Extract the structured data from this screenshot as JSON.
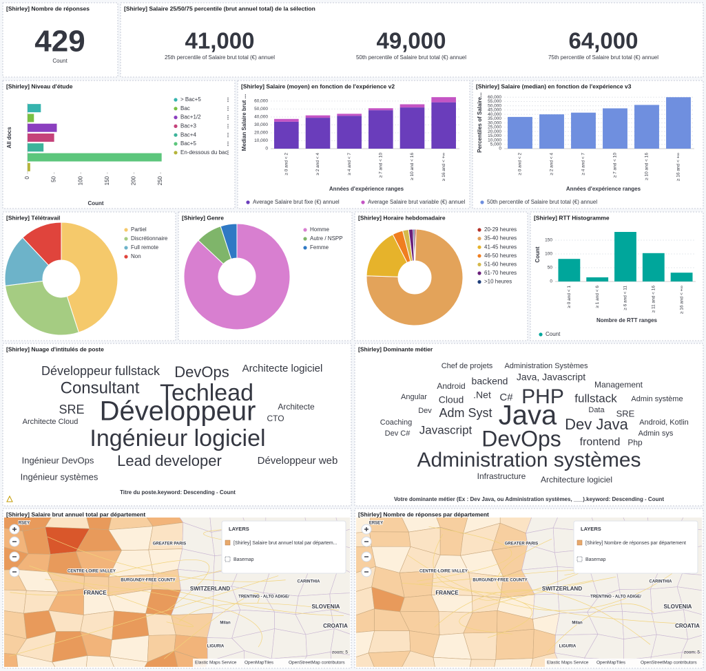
{
  "count_metric": {
    "title": "[Shirley] Nombre de réponses",
    "value": 429,
    "label": "Count"
  },
  "salary_metric": {
    "title": "[Shirley] Salaire 25/50/75 percentile (brut annuel total) de la sélection",
    "values": [
      41000,
      49000,
      64000
    ],
    "value_labels": [
      "41,000",
      "49,000",
      "64,000"
    ],
    "labels": [
      "25th percentile of Salaire brut total (€) annuel",
      "50th percentile of Salaire brut total (€) annuel",
      "75th percentile of Salaire brut total (€) annuel"
    ]
  },
  "chart_data": [
    {
      "type": "bar",
      "orientation": "horizontal",
      "title": "[Shirley] Niveau d'étude",
      "categories": [
        "> Bac+5",
        "Bac",
        "Bac+1/2",
        "Bac+3",
        "Bac+4",
        "Bac+5",
        "En-dessous du bac"
      ],
      "values": [
        25,
        12,
        55,
        50,
        30,
        252,
        5
      ],
      "colors": [
        "#36b4ae",
        "#79c043",
        "#8b3fbf",
        "#c5427a",
        "#3cb39a",
        "#5cc67c",
        "#b5b43a"
      ],
      "xlim": [
        0,
        255
      ],
      "xticks": [
        0,
        50,
        100,
        150,
        200,
        250
      ],
      "grid": false,
      "x_label": "Count",
      "y_label": "All docs"
    },
    {
      "type": "bar",
      "orientation": "vertical",
      "stacked": true,
      "title": "[Shirley] Salaire (moyen) en fonction de l'expérience v2",
      "categories": [
        "≥ 0 and < 2",
        "≥ 2 and < 4",
        "≥ 4 and < 7",
        "≥ 7 and < 10",
        "≥ 10 and < 16",
        "≥ 16 and < +∞"
      ],
      "series": [
        {
          "name": "Average Salaire brut fixe (€) annuel",
          "color": "#6a3dbb",
          "values": [
            34000,
            39000,
            41500,
            48500,
            52000,
            58500
          ]
        },
        {
          "name": "Average Salaire brut variable (€) annuel",
          "color": "#c454c4",
          "values": [
            3500,
            3000,
            2500,
            2500,
            4000,
            6500
          ]
        }
      ],
      "ylim": [
        0,
        66000
      ],
      "yticks": [
        0,
        {
          "value": 10000,
          "label": "10,000"
        },
        {
          "value": 20000,
          "label": "20,000"
        },
        {
          "value": 30000,
          "label": "30,000"
        },
        {
          "value": 40000,
          "label": "40,000"
        },
        {
          "value": 50000,
          "label": "50,000"
        },
        {
          "value": 60000,
          "label": "60,000"
        }
      ],
      "grid": true,
      "x_label": "Années d'expérience ranges",
      "y_label": "Median Salaire brut ..."
    },
    {
      "type": "bar",
      "orientation": "vertical",
      "stacked": false,
      "title": "[Shirley] Salaire (median) en fonction de l'expérience v3",
      "categories": [
        "≥ 0 and < 2",
        "≥ 2 and < 4",
        "≥ 4 and < 7",
        "≥ 7 and < 10",
        "≥ 10 and < 16",
        "≥ 16 and < +∞"
      ],
      "series": [
        {
          "name": "50th percentile of Salaire brut total (€) annuel",
          "color": "#6f8fdf",
          "values": [
            37000,
            40000,
            42000,
            47000,
            51000,
            60000
          ]
        }
      ],
      "ylim": [
        0,
        61000
      ],
      "yticks": [
        0,
        {
          "value": 5000,
          "label": "5,000"
        },
        {
          "value": 10000,
          "label": "10,000"
        },
        {
          "value": 15000,
          "label": "15,000"
        },
        {
          "value": 20000,
          "label": "20,000"
        },
        {
          "value": 25000,
          "label": "25,000"
        },
        {
          "value": 30000,
          "label": "30,000"
        },
        {
          "value": 35000,
          "label": "35,000"
        },
        {
          "value": 40000,
          "label": "40,000"
        },
        {
          "value": 45000,
          "label": "45,000"
        },
        {
          "value": 50000,
          "label": "50,000"
        },
        {
          "value": 55000,
          "label": "55,000"
        },
        {
          "value": 60000,
          "label": "60,000"
        }
      ],
      "grid": true,
      "x_label": "Années d'expérience ranges",
      "y_label": "Percentiles of Salaire..."
    },
    {
      "type": "pie",
      "title": "[Shirley] Télétravail",
      "categories": [
        "Partiel",
        "Discrétionnaire",
        "Full remote",
        "Non"
      ],
      "values": [
        45,
        28,
        15,
        12
      ],
      "colors": [
        "#f5c96b",
        "#a5cc82",
        "#6db3c9",
        "#e0443c"
      ]
    },
    {
      "type": "pie",
      "title": "[Shirley] Genre",
      "categories": [
        "Homme",
        "Autre / NSPP",
        "Femme"
      ],
      "values": [
        87,
        8,
        5
      ],
      "colors": [
        "#d87fd0",
        "#7fb56a",
        "#2f79c4"
      ]
    },
    {
      "type": "pie",
      "title": "[Shirley] Horaire hebdomadaire",
      "categories": [
        "20-29 heures",
        "35-40 heures",
        "41-45 heures",
        "46-50 heures",
        "51-60 heures",
        "61-70 heures",
        ">10 heures"
      ],
      "values": [
        0.5,
        75,
        17,
        3.5,
        2,
        1.5,
        0.5
      ],
      "colors": [
        "#b5332a",
        "#e3a35a",
        "#e6b32b",
        "#f07e20",
        "#d5b94a",
        "#6a1f7a",
        "#1e3e7a"
      ]
    },
    {
      "type": "bar",
      "orientation": "vertical",
      "stacked": false,
      "title": "[Shirley] RTT Histogramme",
      "categories": [
        "≥ 0 and < 1",
        "≥ 1 and < 6",
        "≥ 6 and < 11",
        "≥ 11 and < 16",
        "≥ 16 and < +∞"
      ],
      "series": [
        {
          "name": "Count",
          "color": "#00a69b",
          "values": [
            82,
            15,
            180,
            103,
            32
          ]
        }
      ],
      "ylim": [
        0,
        185
      ],
      "yticks": [
        0,
        50,
        100,
        150
      ],
      "grid": true,
      "x_label": "Nombre de RTT ranges",
      "y_label": "Count"
    }
  ],
  "word_clouds": [
    {
      "title": "[Shirley] Nuage d'intitulés de poste",
      "axis_label": "Titre du poste.keyword: Descending - Count",
      "words": [
        {
          "text": "Développeur fullstack",
          "color": "#3ab0b0"
        },
        {
          "text": "DevOps",
          "color": "#8c3fbf"
        },
        {
          "text": "Architecte logiciel",
          "color": "#4cb86a"
        },
        {
          "text": "Consultant",
          "color": "#7bb83a"
        },
        {
          "text": "Techlead",
          "color": "#b4432b"
        },
        {
          "text": "SRE",
          "color": "#d4a02a"
        },
        {
          "text": "Développeur",
          "color": "#3ab0b0"
        },
        {
          "text": "Architecte",
          "color": "#4cb86a"
        },
        {
          "text": "Architecte Cloud",
          "color": "#9a3fbf"
        },
        {
          "text": "CTO",
          "color": "#3a5fb0"
        },
        {
          "text": "Ingénieur logiciel",
          "color": "#3a4fb0"
        },
        {
          "text": "Ingénieur DevOps",
          "color": "#4cb86a"
        },
        {
          "text": "Lead developer",
          "color": "#c84a9a"
        },
        {
          "text": "Développeur web",
          "color": "#4cb86a"
        },
        {
          "text": "Ingénieur systèmes",
          "color": "#c84a9a"
        }
      ]
    },
    {
      "title": "[Shirley] Dominante métier",
      "axis_label": "Votre dominante métier (Ex : Dev Java, ou Administration systèmes, ___).keyword: Descending - Count",
      "words": [
        {
          "text": "Chef de projets",
          "color": "#d04040"
        },
        {
          "text": "Administration Systèmes",
          "color": "#3a5fb0"
        },
        {
          "text": "Android",
          "color": "#9a3fbf"
        },
        {
          "text": "backend",
          "color": "#9a3fbf"
        },
        {
          "text": "Java, Javascript",
          "color": "#3a5fb0"
        },
        {
          "text": "Management",
          "color": "#9a3fbf"
        },
        {
          "text": "Angular",
          "color": "#3ab0b0"
        },
        {
          "text": "Cloud",
          "color": "#3a5fb0"
        },
        {
          "text": ".Net",
          "color": "#3ab0b0"
        },
        {
          "text": "C#",
          "color": "#3ab0b0"
        },
        {
          "text": "PHP",
          "color": "#b4432b"
        },
        {
          "text": "fullstack",
          "color": "#3ab0b0"
        },
        {
          "text": "Admin système",
          "color": "#d4a02a"
        },
        {
          "text": "Data",
          "color": "#3ab0b0"
        },
        {
          "text": "Dev",
          "color": "#4cb86a"
        },
        {
          "text": "Adm Syst",
          "color": "#4cb86a"
        },
        {
          "text": "Java",
          "color": "#4cb86a"
        },
        {
          "text": "SRE",
          "color": "#d4a02a"
        },
        {
          "text": "Coaching",
          "color": "#d4892a"
        },
        {
          "text": "Dev Java",
          "color": "#3a4fb0"
        },
        {
          "text": "Android, Kotlin",
          "color": "#c84a7a"
        },
        {
          "text": "Dev C#",
          "color": "#9a3fbf"
        },
        {
          "text": "Javascript",
          "color": "#4cb86a"
        },
        {
          "text": "DevOps",
          "color": "#9a3fbf"
        },
        {
          "text": "frontend",
          "color": "#b4432b"
        },
        {
          "text": "Admin sys",
          "color": "#9a3fbf"
        },
        {
          "text": "Php",
          "color": "#4cb86a"
        },
        {
          "text": "Administration systèmes",
          "color": "#b5b43a"
        },
        {
          "text": "Infrastructure",
          "color": "#d4a02a"
        },
        {
          "text": "Architecture logiciel",
          "color": "#b5b43a"
        }
      ]
    }
  ],
  "maps": [
    {
      "title": "[Shirley] Salaire brut annuel total par département",
      "layers_label": "LAYERS",
      "layer": "[Shirley] Salaire brut annuel total par départem...",
      "basemap": "Basemap",
      "zoom": "zoom: 5",
      "place_labels": [
        "RSEY",
        "GREATER PARIS",
        "CENTRE-LOIRE VALLEY",
        "FRANCE",
        "BURGUNDY-FREE COUNTY",
        "SWITZERLAND",
        "TRENTINO - ALTO ADIGE/",
        "CARINTHIA",
        "SLOVENIA",
        "Milan",
        "CROATIA",
        "LIGURIA"
      ],
      "attribution": [
        "Elastic Maps Service",
        "OpenMapTiles",
        "OpenStreetMap contributors"
      ]
    },
    {
      "title": "[Shirley] Nombre de réponses par département",
      "layers_label": "LAYERS",
      "layer": "[Shirley] Nombre de réponses par département",
      "basemap": "Basemap",
      "zoom": "zoom: 5",
      "place_labels": [
        "ERSEY",
        "GREATER PARIS",
        "CENTRE-LOIRE VALLEY",
        "FRANCE",
        "BURGUNDY-FREE COUNTY",
        "SWITZERLAND",
        "TRENTINO - ALTO ADIGE/",
        "CARINTHIA",
        "SLOVENIA",
        "Milan",
        "CROATIA",
        "LIGURIA"
      ],
      "attribution": [
        "Elastic Maps Service",
        "OpenMapTiles",
        "OpenStreetMap contributors"
      ]
    }
  ]
}
